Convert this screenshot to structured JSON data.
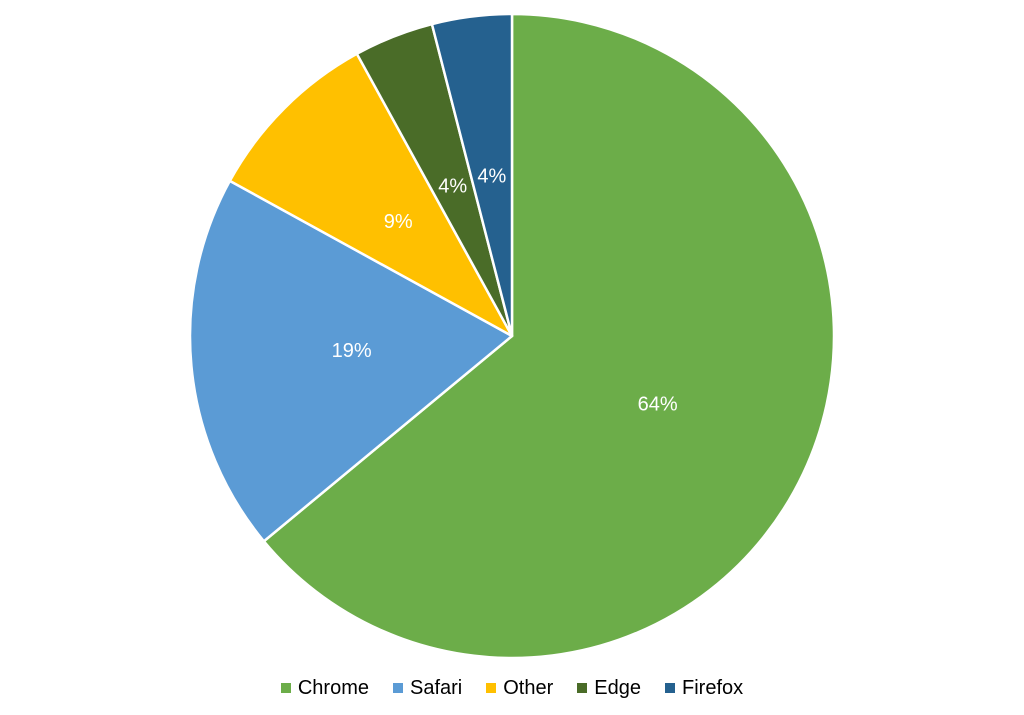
{
  "chart_data": {
    "type": "pie",
    "title": "",
    "categories": [
      "Chrome",
      "Safari",
      "Other",
      "Edge",
      "Firefox"
    ],
    "values": [
      64,
      19,
      9,
      4,
      4
    ],
    "unit": "%",
    "slice_labels": [
      "64%",
      "19%",
      "9%",
      "4%",
      "4%"
    ],
    "colors": [
      "#6CAD49",
      "#5B9BD5",
      "#FFC000",
      "#4A6C28",
      "#25618F"
    ],
    "start_angle_deg": 0,
    "direction": "clockwise",
    "legend_position": "bottom",
    "slice_label_color": "#FFFFFF",
    "slice_border_color": "#FFFFFF",
    "legend_text_color": "#000000",
    "background_color": "#FFFFFF"
  }
}
